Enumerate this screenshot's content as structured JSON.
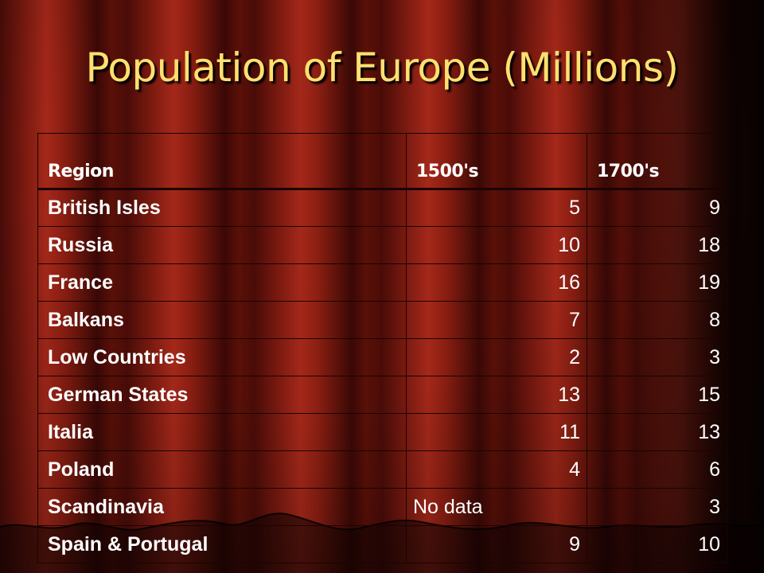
{
  "slide": {
    "title": "Population of Europe (Millions)"
  },
  "chart_data": {
    "type": "table",
    "title": "Population of Europe (Millions)",
    "columns": [
      "Region",
      "1500's",
      "1700's"
    ],
    "rows": [
      {
        "region": "British Isles",
        "c1500": "5",
        "c1700": "9"
      },
      {
        "region": "Russia",
        "c1500": "10",
        "c1700": "18"
      },
      {
        "region": "France",
        "c1500": "16",
        "c1700": "19"
      },
      {
        "region": "Balkans",
        "c1500": "7",
        "c1700": "8"
      },
      {
        "region": "Low Countries",
        "c1500": "2",
        "c1700": "3"
      },
      {
        "region": "German States",
        "c1500": "13",
        "c1700": "15"
      },
      {
        "region": "Italia",
        "c1500": "11",
        "c1700": "13"
      },
      {
        "region": "Poland",
        "c1500": "4",
        "c1700": "6"
      },
      {
        "region": "Scandinavia",
        "c1500": "No data",
        "c1700": "3"
      },
      {
        "region": "Spain & Portugal",
        "c1500": "9",
        "c1700": "10"
      }
    ]
  },
  "theme": {
    "title_color": "#ffe070",
    "text_color": "#ffffff",
    "background": "red-curtain"
  }
}
